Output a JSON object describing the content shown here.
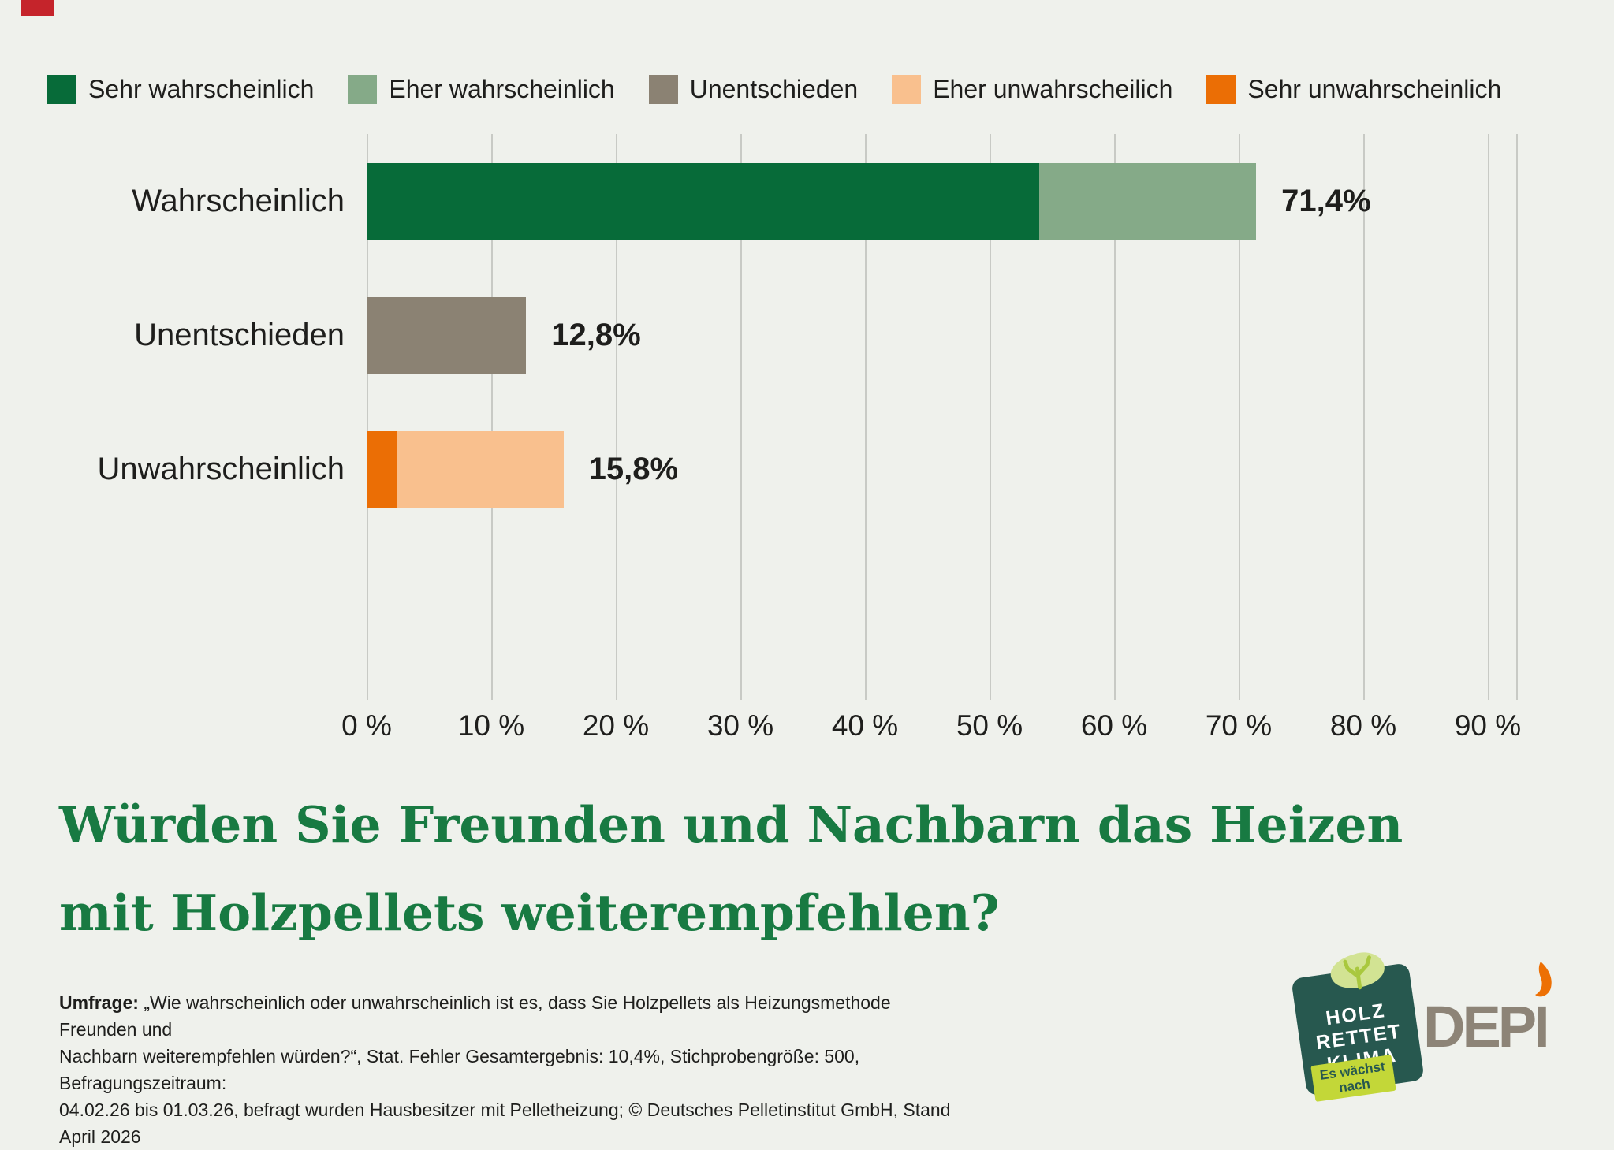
{
  "marker_color": "#c5242b",
  "background_color": "#eff1ec",
  "legend": {
    "items": [
      {
        "label": "Sehr wahrscheinlich",
        "color": "#076b39"
      },
      {
        "label": "Eher wahrscheinlich",
        "color": "#85aa88"
      },
      {
        "label": "Unentschieden",
        "color": "#8b8273"
      },
      {
        "label": "Eher unwahrscheilich",
        "color": "#f9c08e"
      },
      {
        "label": "Sehr unwahrscheinlich",
        "color": "#eb6e05"
      }
    ]
  },
  "chart_data": {
    "type": "bar",
    "orientation": "horizontal",
    "title": "Würden Sie Freunden und Nachbarn das Heizen mit Holzpellets weiterempfehlen?",
    "grid": true,
    "legend_position": "top",
    "x_range": [
      0,
      92
    ],
    "x_ticks": [
      "0 %",
      "10 %",
      "20 %",
      "30 %",
      "40 %",
      "50 %",
      "60 %",
      "70 %",
      "80 %",
      "90 %"
    ],
    "rows": [
      {
        "label": "Wahrscheinlich",
        "total": 71.4,
        "total_label": "71,4%",
        "segments": [
          {
            "name": "Sehr wahrscheinlich",
            "value": 54.0,
            "color": "#076b39"
          },
          {
            "name": "Eher wahrscheinlich",
            "value": 17.4,
            "color": "#85aa88"
          }
        ]
      },
      {
        "label": "Unentschieden",
        "total": 12.8,
        "total_label": "12,8%",
        "segments": [
          {
            "name": "Unentschieden",
            "value": 12.8,
            "color": "#8b8273"
          }
        ]
      },
      {
        "label": "Unwahrscheinlich",
        "total": 15.8,
        "total_label": "15,8%",
        "segments": [
          {
            "name": "Sehr unwahrscheinlich",
            "value": 2.4,
            "color": "#eb6e05"
          },
          {
            "name": "Eher unwahrscheilich",
            "value": 13.4,
            "color": "#f9c08e"
          }
        ]
      }
    ]
  },
  "title": {
    "line1": "Würden Sie Freunden und Nachbarn das Heizen",
    "line2": "mit Holzpellets weiterempfehlen?",
    "color": "#187a42"
  },
  "footnote": {
    "prefix": "Umfrage:",
    "line1": "„Wie wahrscheinlich oder unwahrscheinlich ist es, dass Sie Holzpellets als Heizungsmethode Freunden und",
    "line2": "Nachbarn weiterempfehlen würden?“, Stat. Fehler Gesamtergebnis: 10,4%, Stichprobengröße: 500, Befragungszeitraum:",
    "line3": "04.02.26 bis 01.03.26, befragt wurden Hausbesitzer mit Pelletheizung; © Deutsches Pelletinstitut GmbH, Stand April 2026"
  },
  "logos": {
    "hrk": {
      "line1": "HOLZ",
      "line2": "RETTET",
      "line3": "KLIMA",
      "tag_line1": "Es wächst",
      "tag_line2": "nach",
      "square_color": "#27584f",
      "tag_color": "#c3d738",
      "tree_color": "#d2e393"
    },
    "depi": {
      "text": "DEPI",
      "text_color": "#8d8477",
      "flame_color": "#ed7004"
    }
  }
}
